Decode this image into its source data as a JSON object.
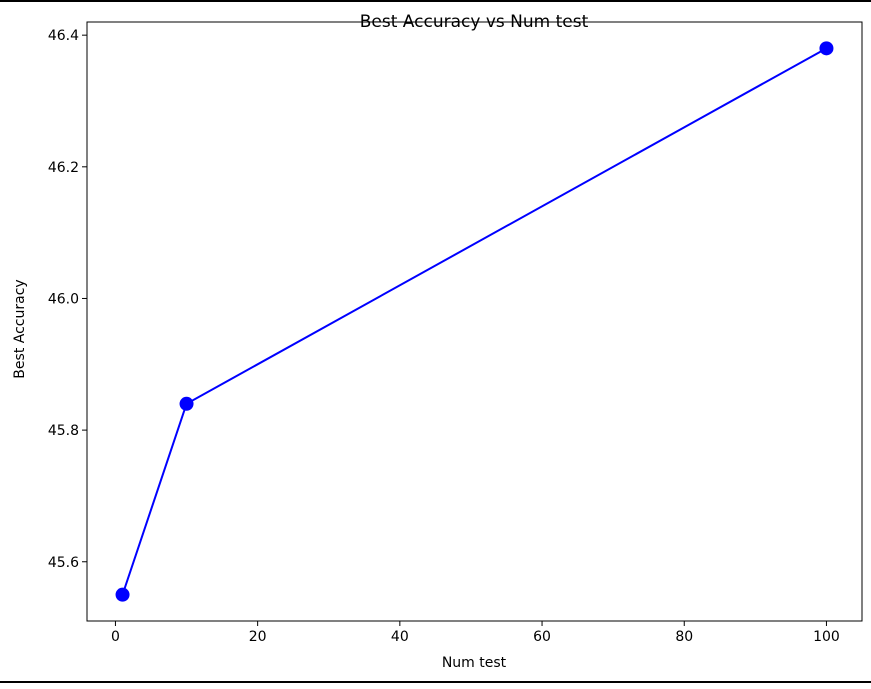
{
  "chart_data": {
    "type": "line",
    "title": "Best Accuracy vs Num test",
    "xlabel": "Num test",
    "ylabel": "Best Accuracy",
    "x": [
      1,
      10,
      100
    ],
    "series": [
      {
        "name": "Best Accuracy",
        "values": [
          45.55,
          45.84,
          46.38
        ],
        "color": "#0000ff",
        "marker": "circle"
      }
    ],
    "xlim": [
      -4.0,
      105.0
    ],
    "ylim": [
      45.51,
      46.42
    ],
    "xticks": [
      0,
      20,
      40,
      60,
      80,
      100
    ],
    "xtick_labels": [
      "0",
      "20",
      "40",
      "60",
      "80",
      "100"
    ],
    "yticks": [
      45.6,
      45.8,
      46.0,
      46.2,
      46.4
    ],
    "ytick_labels": [
      "45.6",
      "45.8",
      "46.0",
      "46.2",
      "46.4"
    ],
    "grid": false,
    "legend": "none"
  }
}
